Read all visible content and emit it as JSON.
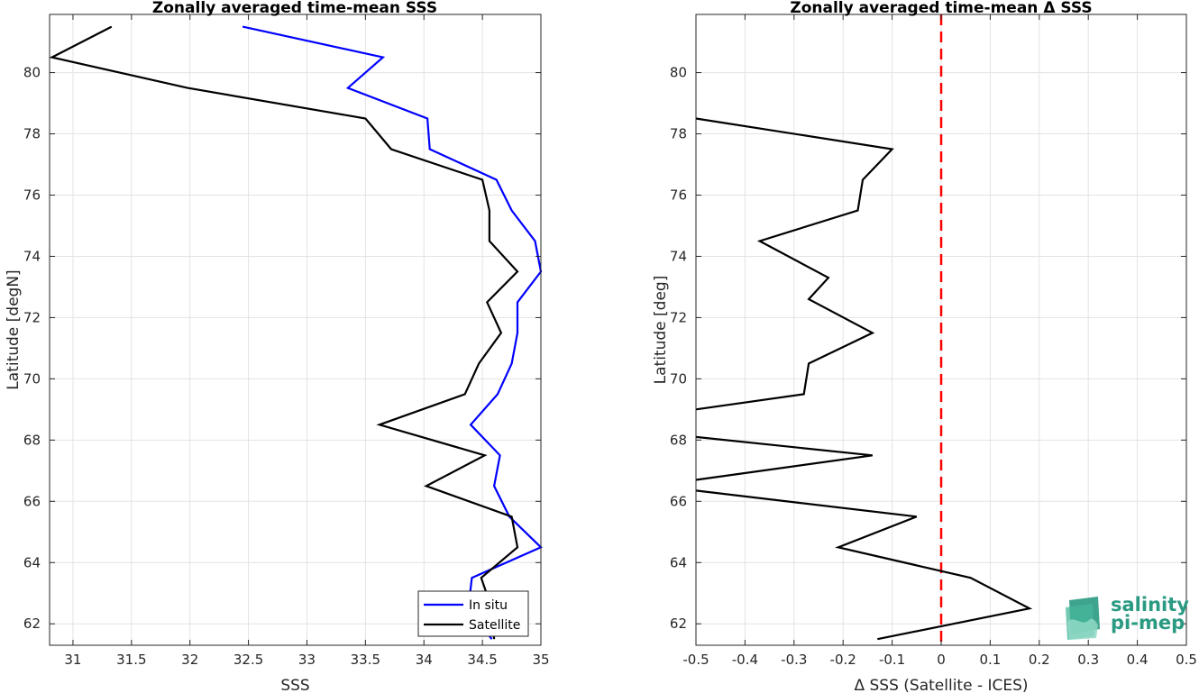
{
  "chart_data": [
    {
      "type": "line",
      "title": "Zonally averaged time-mean SSS",
      "xlabel": "SSS",
      "ylabel": "Latitude [degN]",
      "xlim": [
        30.8,
        35.0
      ],
      "ylim": [
        61.3,
        81.9
      ],
      "xticks": [
        31,
        31.5,
        32,
        32.5,
        33,
        33.5,
        34,
        34.5,
        35
      ],
      "yticks": [
        62,
        64,
        66,
        68,
        70,
        72,
        74,
        76,
        78,
        80
      ],
      "grid": true,
      "legend_position": "bottom-right",
      "series": [
        {
          "name": "In situ",
          "color": "#0000ff",
          "x": [
            32.45,
            33.65,
            33.35,
            34.03,
            34.05,
            34.62,
            34.75,
            34.95,
            35.0,
            34.8,
            34.8,
            34.75,
            34.63,
            34.4,
            34.65,
            34.6,
            34.73,
            35.0,
            34.41,
            34.38,
            34.58
          ],
          "y": [
            81.5,
            80.5,
            79.5,
            78.5,
            77.5,
            76.5,
            75.5,
            74.5,
            73.5,
            72.5,
            71.5,
            70.5,
            69.5,
            68.5,
            67.5,
            66.5,
            65.5,
            64.5,
            63.5,
            62.5,
            61.5
          ]
        },
        {
          "name": "Satellite",
          "color": "#000000",
          "x": [
            31.33,
            30.82,
            31.98,
            33.5,
            33.72,
            34.5,
            34.56,
            34.56,
            34.8,
            34.54,
            34.66,
            34.47,
            34.35,
            33.62,
            34.52,
            34.02,
            34.75,
            34.8,
            34.49,
            34.58,
            34.6
          ],
          "y": [
            81.5,
            80.5,
            79.5,
            78.5,
            77.5,
            76.5,
            75.5,
            74.5,
            73.5,
            72.5,
            71.5,
            70.5,
            69.5,
            68.5,
            67.5,
            66.5,
            65.5,
            64.5,
            63.5,
            62.5,
            61.5
          ]
        }
      ]
    },
    {
      "type": "line",
      "title": "Zonally averaged time-mean Δ SSS",
      "xlabel": "Δ SSS (Satellite - ICES)",
      "ylabel": "Latitude [deg]",
      "xlim": [
        -0.5,
        0.5
      ],
      "ylim": [
        61.3,
        81.9
      ],
      "xticks": [
        -0.5,
        -0.4,
        -0.3,
        -0.2,
        -0.1,
        0,
        0.1,
        0.2,
        0.3,
        0.4,
        0.5
      ],
      "xticklabels": [
        "-0.5",
        "-0.4",
        "-0.3",
        "-0.2",
        "-0.1",
        "0",
        "0.1",
        "0.2",
        "0.3",
        "0.4",
        "0.5"
      ],
      "yticks": [
        62,
        64,
        66,
        68,
        70,
        72,
        74,
        76,
        78,
        80
      ],
      "grid": true,
      "reference_line": {
        "x": 0,
        "color": "#ff0000",
        "style": "dashed"
      },
      "series": [
        {
          "color": "#000000",
          "x": [
            -0.5,
            -0.1,
            -0.16,
            -0.17,
            -0.37,
            -0.23,
            -0.27,
            -0.14,
            -0.27,
            -0.28,
            -0.5,
            null,
            -0.5,
            -0.14,
            -0.5,
            null,
            -0.5,
            -0.05,
            -0.21,
            0.06,
            0.18,
            -0.13
          ],
          "y": [
            78.5,
            77.5,
            76.5,
            75.5,
            74.5,
            73.3,
            72.6,
            71.5,
            70.5,
            69.5,
            69.0,
            null,
            68.1,
            67.5,
            66.7,
            null,
            66.35,
            65.5,
            64.5,
            63.5,
            62.5,
            61.5
          ]
        }
      ]
    }
  ],
  "logo": {
    "line1": "salinity",
    "line2": "pi-mep",
    "color": "#2a9a82"
  }
}
